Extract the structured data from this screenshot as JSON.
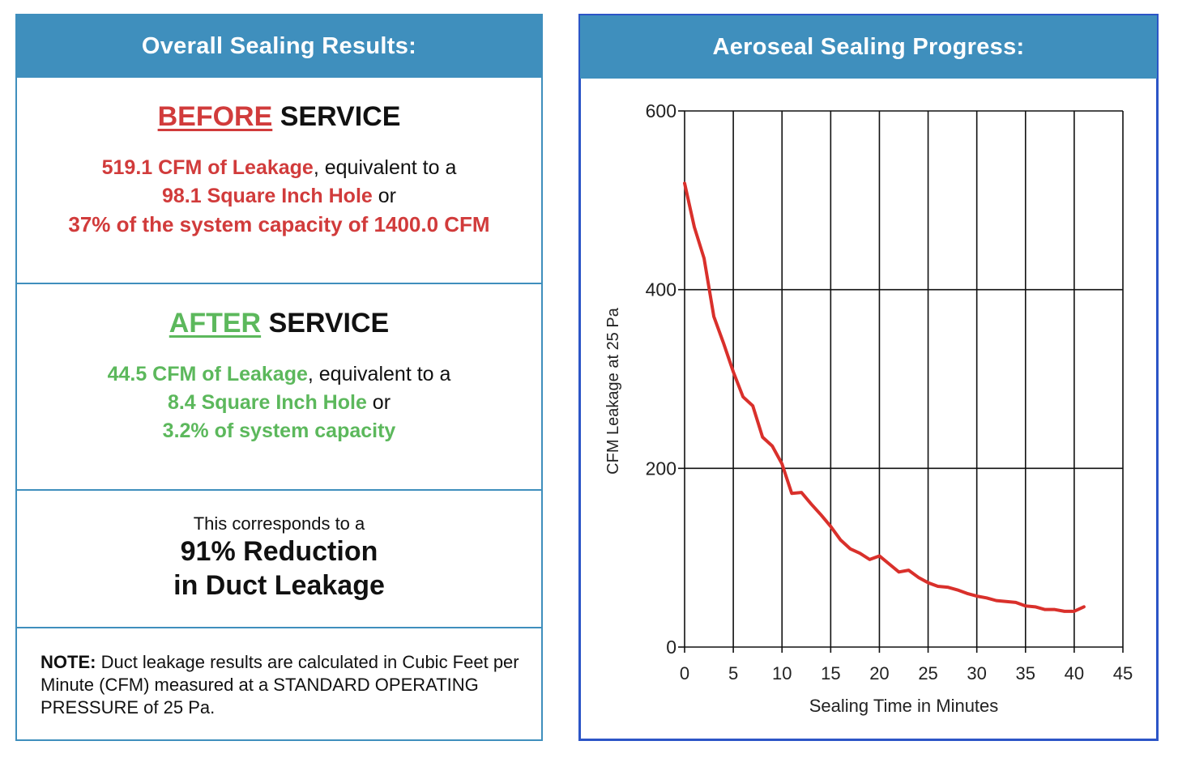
{
  "left": {
    "header": "Overall Sealing Results:",
    "before": {
      "word": "BEFORE",
      "service": "SERVICE",
      "leakage": "519.1 CFM of Leakage",
      "leakage_suffix": ", equivalent to a",
      "hole": "98.1 Square Inch Hole",
      "hole_suffix": " or",
      "capacity": "37% of the system capacity of 1400.0 CFM"
    },
    "after": {
      "word": "AFTER",
      "service": "SERVICE",
      "leakage": "44.5 CFM of Leakage",
      "leakage_suffix": ", equivalent to a",
      "hole": "8.4 Square Inch Hole",
      "hole_suffix": " or",
      "capacity": "3.2% of system capacity"
    },
    "reduction": {
      "intro": "This corresponds to a",
      "line1": "91% Reduction",
      "line2": "in Duct Leakage"
    },
    "note": {
      "label": "NOTE:",
      "text": " Duct leakage results are calculated in Cubic Feet per Minute (CFM) measured at a STANDARD OPERATING PRESSURE of 25 Pa."
    }
  },
  "right": {
    "header": "Aeroseal Sealing Progress:"
  },
  "colors": {
    "header_bg": "#3f8fbd",
    "red": "#d13b3b",
    "green": "#5cb85c",
    "chart_border": "#2c55c7",
    "line": "#d9302b"
  },
  "chart_data": {
    "type": "line",
    "title": "",
    "xlabel": "Sealing Time in Minutes",
    "ylabel": "CFM Leakage at 25 Pa",
    "xlim": [
      0,
      45
    ],
    "ylim": [
      0,
      600
    ],
    "xticks": [
      0,
      5,
      10,
      15,
      20,
      25,
      30,
      35,
      40,
      45
    ],
    "yticks": [
      0,
      200,
      400,
      600
    ],
    "grid": true,
    "series": [
      {
        "name": "",
        "x": [
          0,
          1,
          2,
          3,
          4,
          5,
          6,
          7,
          8,
          9,
          10,
          11,
          12,
          13,
          14,
          15,
          16,
          17,
          18,
          19,
          20,
          21,
          22,
          23,
          24,
          25,
          26,
          27,
          28,
          29,
          30,
          31,
          32,
          33,
          34,
          35,
          36,
          37,
          38,
          39,
          40,
          41
        ],
        "y": [
          519,
          470,
          435,
          370,
          340,
          308,
          280,
          270,
          235,
          225,
          205,
          172,
          173,
          160,
          148,
          135,
          120,
          110,
          105,
          98,
          102,
          93,
          84,
          86,
          78,
          72,
          68,
          67,
          64,
          60,
          57,
          55,
          52,
          51,
          50,
          46,
          45,
          42,
          42,
          40,
          40,
          45
        ]
      }
    ]
  }
}
